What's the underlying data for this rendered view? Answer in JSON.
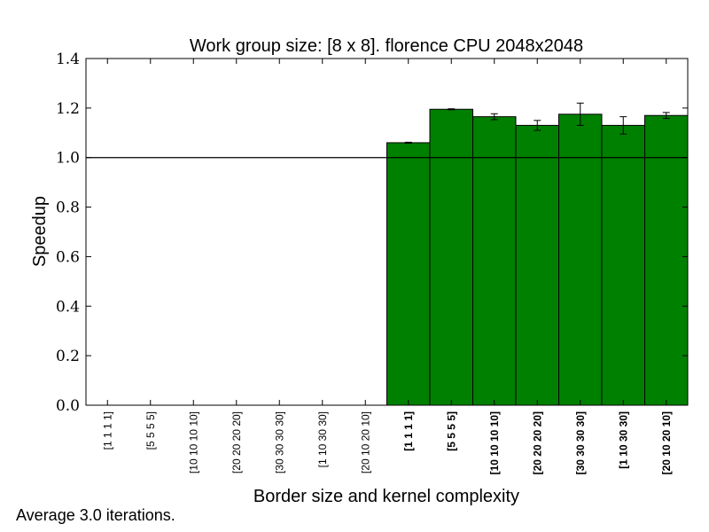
{
  "chart_data": {
    "type": "bar",
    "title": "Work group size: [8 x 8]. florence CPU 2048x2048",
    "xlabel": "Border size and kernel complexity",
    "ylabel": "Speedup",
    "ylim": [
      0.0,
      1.4
    ],
    "yticks": [
      "0.0",
      "0.2",
      "0.4",
      "0.6",
      "0.8",
      "1.0",
      "1.2",
      "1.4"
    ],
    "reference_line": 1.0,
    "bar_color": "#008000",
    "categories": [
      "[1 1 1 1]",
      "[5 5 5 5]",
      "[10 10 10 10]",
      "[20 20 20 20]",
      "[30 30 30 30]",
      "[1 10 30 30]",
      "[20 10 20 10]",
      "[1 1 1 1]",
      "[5 5 5 5]",
      "[10 10 10 10]",
      "[20 20 20 20]",
      "[30 30 30 30]",
      "[1 10 30 30]",
      "[20 10 20 10]"
    ],
    "bold_categories": [
      false,
      false,
      false,
      false,
      false,
      false,
      false,
      true,
      true,
      true,
      true,
      true,
      true,
      true
    ],
    "values": [
      null,
      null,
      null,
      null,
      null,
      null,
      null,
      1.06,
      1.195,
      1.165,
      1.13,
      1.175,
      1.13,
      1.17
    ],
    "errors": [
      null,
      null,
      null,
      null,
      null,
      null,
      null,
      0.002,
      0.002,
      0.012,
      0.02,
      0.045,
      0.035,
      0.012
    ],
    "grid": false
  },
  "footnote": "Average 3.0 iterations."
}
